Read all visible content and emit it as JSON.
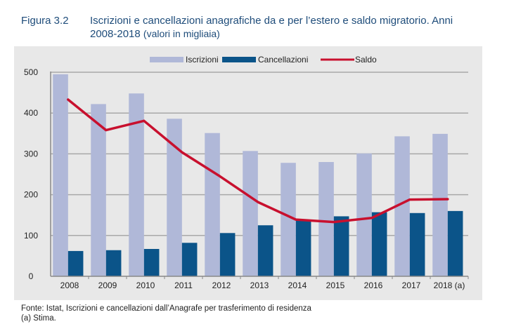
{
  "figure": {
    "number": "Figura 3.2",
    "title": "Iscrizioni e cancellazioni anagrafiche da e per l’estero e saldo migratorio. Anni",
    "title_line2": "2008-2018",
    "subtitle": "(valori in migliaia)"
  },
  "footer": {
    "source": "Fonte: Istat, Iscrizioni e cancellazioni dall’Anagrafe per trasferimento di residenza",
    "note": "(a) Stima."
  },
  "colors": {
    "iscrizioni": "#b0b8d8",
    "cancellazioni": "#0b5489",
    "saldo": "#c8102e",
    "grid": "#a8a8a8",
    "panel": "#e8e8e8"
  },
  "chart_data": {
    "type": "bar",
    "title": "Iscrizioni e cancellazioni anagrafiche da e per l’estero e saldo migratorio. Anni 2008-2018 (valori in migliaia)",
    "xlabel": "",
    "ylabel": "",
    "categories": [
      "2008",
      "2009",
      "2010",
      "2011",
      "2012",
      "2013",
      "2014",
      "2015",
      "2016",
      "2017",
      "2018 (a)"
    ],
    "series": [
      {
        "name": "Iscrizioni",
        "type": "bar",
        "values": [
          495,
          422,
          448,
          386,
          351,
          307,
          278,
          280,
          301,
          343,
          349
        ]
      },
      {
        "name": "Cancellazioni",
        "type": "bar",
        "values": [
          62,
          64,
          67,
          82,
          106,
          125,
          139,
          147,
          157,
          155,
          160
        ]
      },
      {
        "name": "Saldo",
        "type": "line",
        "values": [
          433,
          358,
          381,
          304,
          245,
          182,
          139,
          133,
          143,
          188,
          189
        ]
      }
    ],
    "ylim": [
      0,
      500
    ],
    "yticks": [
      0,
      100,
      200,
      300,
      400,
      500
    ],
    "grid": true,
    "legend": "top-center"
  }
}
